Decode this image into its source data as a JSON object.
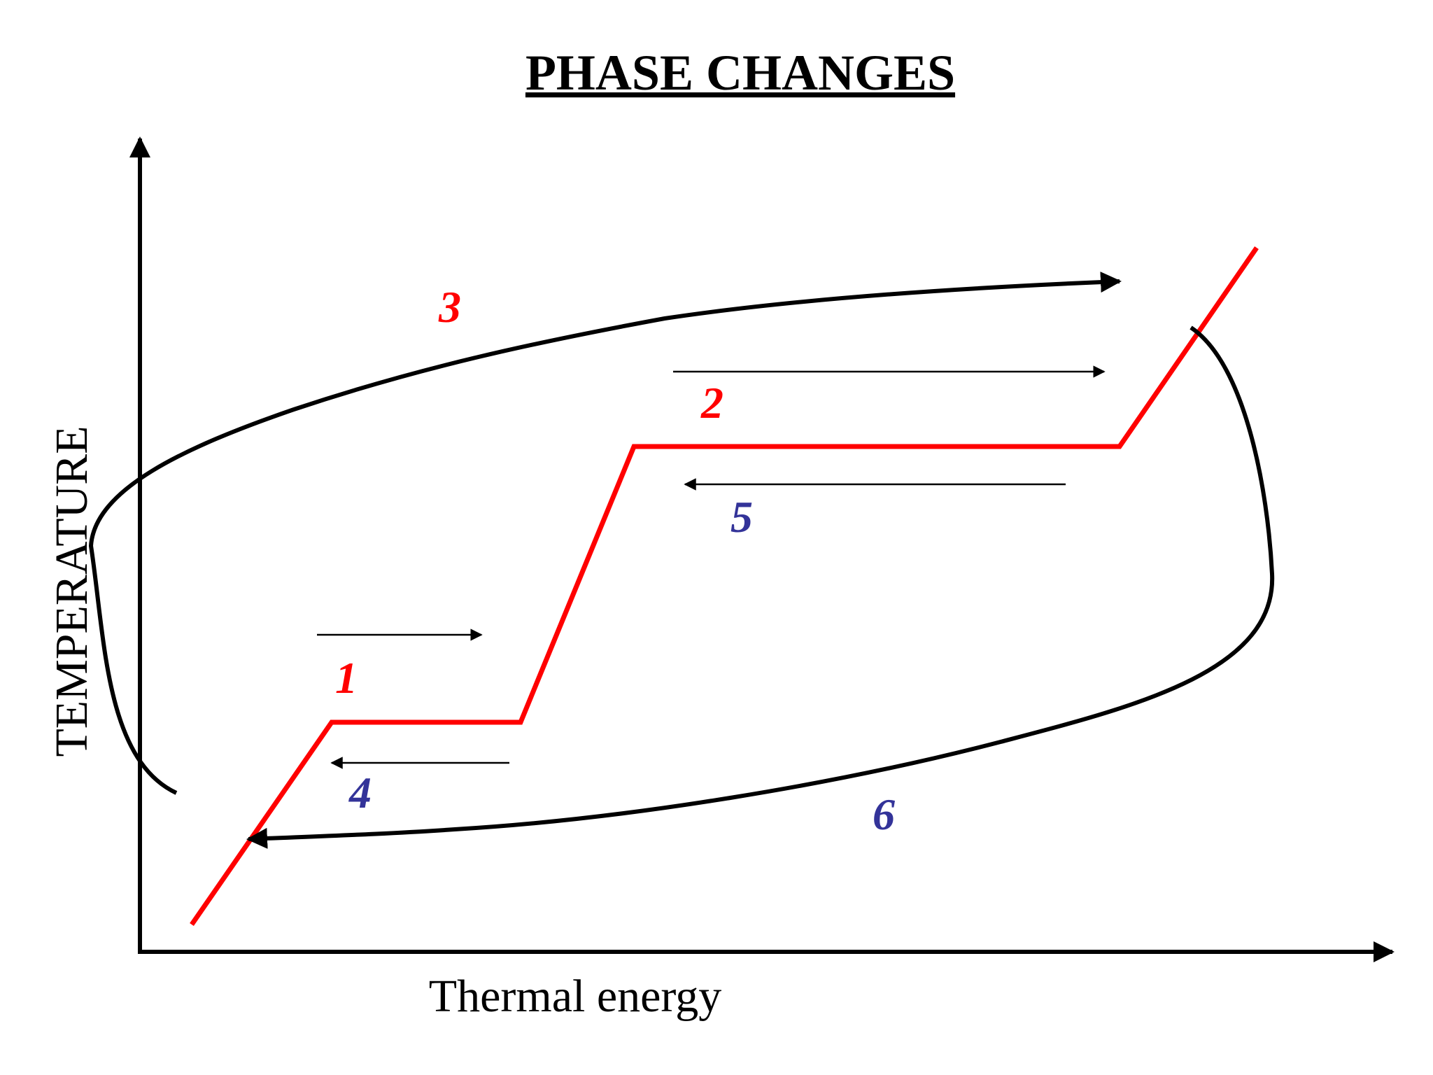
{
  "title": "PHASE CHANGES",
  "axes": {
    "x_label": "Thermal energy",
    "y_label": "TEMPERATURE"
  },
  "colors": {
    "heating_curve": "#ff0000",
    "heating_labels": "#ff0000",
    "cooling_labels": "#333399",
    "arrows": "#000000"
  },
  "labels": {
    "step_1": "1",
    "step_2": "2",
    "step_3": "3",
    "step_4": "4",
    "step_5": "5",
    "step_6": "6"
  }
}
